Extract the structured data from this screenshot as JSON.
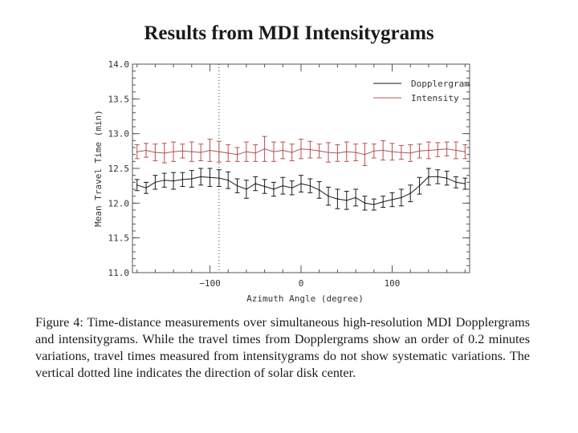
{
  "title": "Results from MDI Intensitygrams",
  "caption": "Figure 4: Time-distance measurements over simultaneous high-resolution MDI Dopplergrams and intensitygrams. While the travel times from Dopplergrams show an order of 0.2 minutes variations, travel times measured from intensitygrams do not show systematic variations. The vertical dotted line indicates the direction of solar disk center.",
  "chart_data": {
    "type": "line",
    "xlabel": "Azimuth Angle (degree)",
    "ylabel": "Mean Travel Time (min)",
    "xlim": [
      -185,
      185
    ],
    "ylim": [
      11.0,
      14.0
    ],
    "xticks": [
      -100,
      0,
      100
    ],
    "xtick_labels": [
      "−100",
      "0",
      "100"
    ],
    "yticks": [
      11.0,
      11.5,
      12.0,
      12.5,
      13.0,
      13.5,
      14.0
    ],
    "ytick_labels": [
      "11.0",
      "11.5",
      "12.0",
      "12.5",
      "13.0",
      "13.5",
      "14.0"
    ],
    "vline_x": -90,
    "legend_position": "top-right",
    "x": [
      -180,
      -170,
      -160,
      -150,
      -140,
      -130,
      -120,
      -110,
      -100,
      -90,
      -80,
      -70,
      -60,
      -50,
      -40,
      -30,
      -20,
      -10,
      0,
      10,
      20,
      30,
      40,
      50,
      60,
      70,
      80,
      90,
      100,
      110,
      120,
      130,
      140,
      150,
      160,
      170,
      180
    ],
    "series": [
      {
        "name": "Dopplergram",
        "color": "#1a1a1a",
        "values": [
          12.26,
          12.22,
          12.3,
          12.33,
          12.32,
          12.34,
          12.35,
          12.38,
          12.37,
          12.36,
          12.33,
          12.25,
          12.2,
          12.28,
          12.24,
          12.2,
          12.25,
          12.22,
          12.28,
          12.25,
          12.19,
          12.1,
          12.06,
          12.04,
          12.08,
          12.0,
          11.98,
          12.02,
          12.05,
          12.08,
          12.14,
          12.25,
          12.38,
          12.38,
          12.36,
          12.3,
          12.28
        ],
        "errors": [
          0.08,
          0.08,
          0.1,
          0.1,
          0.12,
          0.1,
          0.12,
          0.12,
          0.13,
          0.12,
          0.12,
          0.1,
          0.13,
          0.1,
          0.1,
          0.1,
          0.12,
          0.1,
          0.12,
          0.1,
          0.12,
          0.13,
          0.14,
          0.13,
          0.12,
          0.1,
          0.08,
          0.08,
          0.1,
          0.12,
          0.12,
          0.12,
          0.12,
          0.1,
          0.1,
          0.08,
          0.08
        ]
      },
      {
        "name": "Intensity",
        "color": "#b85050",
        "values": [
          12.74,
          12.76,
          12.73,
          12.72,
          12.74,
          12.75,
          12.74,
          12.73,
          12.76,
          12.74,
          12.72,
          12.7,
          12.74,
          12.72,
          12.78,
          12.74,
          12.76,
          12.73,
          12.78,
          12.77,
          12.75,
          12.73,
          12.72,
          12.74,
          12.73,
          12.7,
          12.75,
          12.76,
          12.74,
          12.73,
          12.72,
          12.75,
          12.76,
          12.77,
          12.78,
          12.76,
          12.74
        ],
        "errors": [
          0.1,
          0.1,
          0.12,
          0.14,
          0.14,
          0.1,
          0.14,
          0.12,
          0.16,
          0.15,
          0.12,
          0.1,
          0.14,
          0.12,
          0.18,
          0.14,
          0.12,
          0.12,
          0.14,
          0.12,
          0.1,
          0.14,
          0.12,
          0.14,
          0.12,
          0.16,
          0.1,
          0.14,
          0.12,
          0.1,
          0.12,
          0.1,
          0.12,
          0.1,
          0.1,
          0.12,
          0.1
        ]
      }
    ]
  }
}
